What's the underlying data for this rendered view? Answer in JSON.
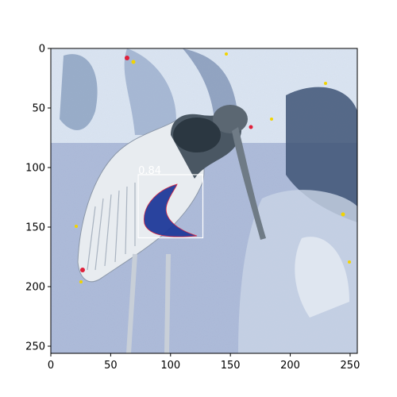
{
  "axes": {
    "x_ticks": [
      "0",
      "50",
      "100",
      "150",
      "200",
      "250"
    ],
    "y_ticks": [
      "0",
      "50",
      "100",
      "150",
      "200",
      "250"
    ],
    "x_range": [
      0,
      256
    ],
    "y_range": [
      0,
      256
    ]
  },
  "detection": {
    "score": "0.84",
    "box_color": "#ffffff",
    "box_data": {
      "x0": 73,
      "y0": 106,
      "x1": 127,
      "y1": 159
    }
  },
  "image": {
    "description_tags": [
      "bird-icon",
      "negative-colors"
    ],
    "palette": {
      "sky": "#dde8f2",
      "ground": "#a9b8d6",
      "bird_light": "#e7ebef",
      "bird_dark": "#3c4a55",
      "mask": "#1f3a9a"
    }
  }
}
